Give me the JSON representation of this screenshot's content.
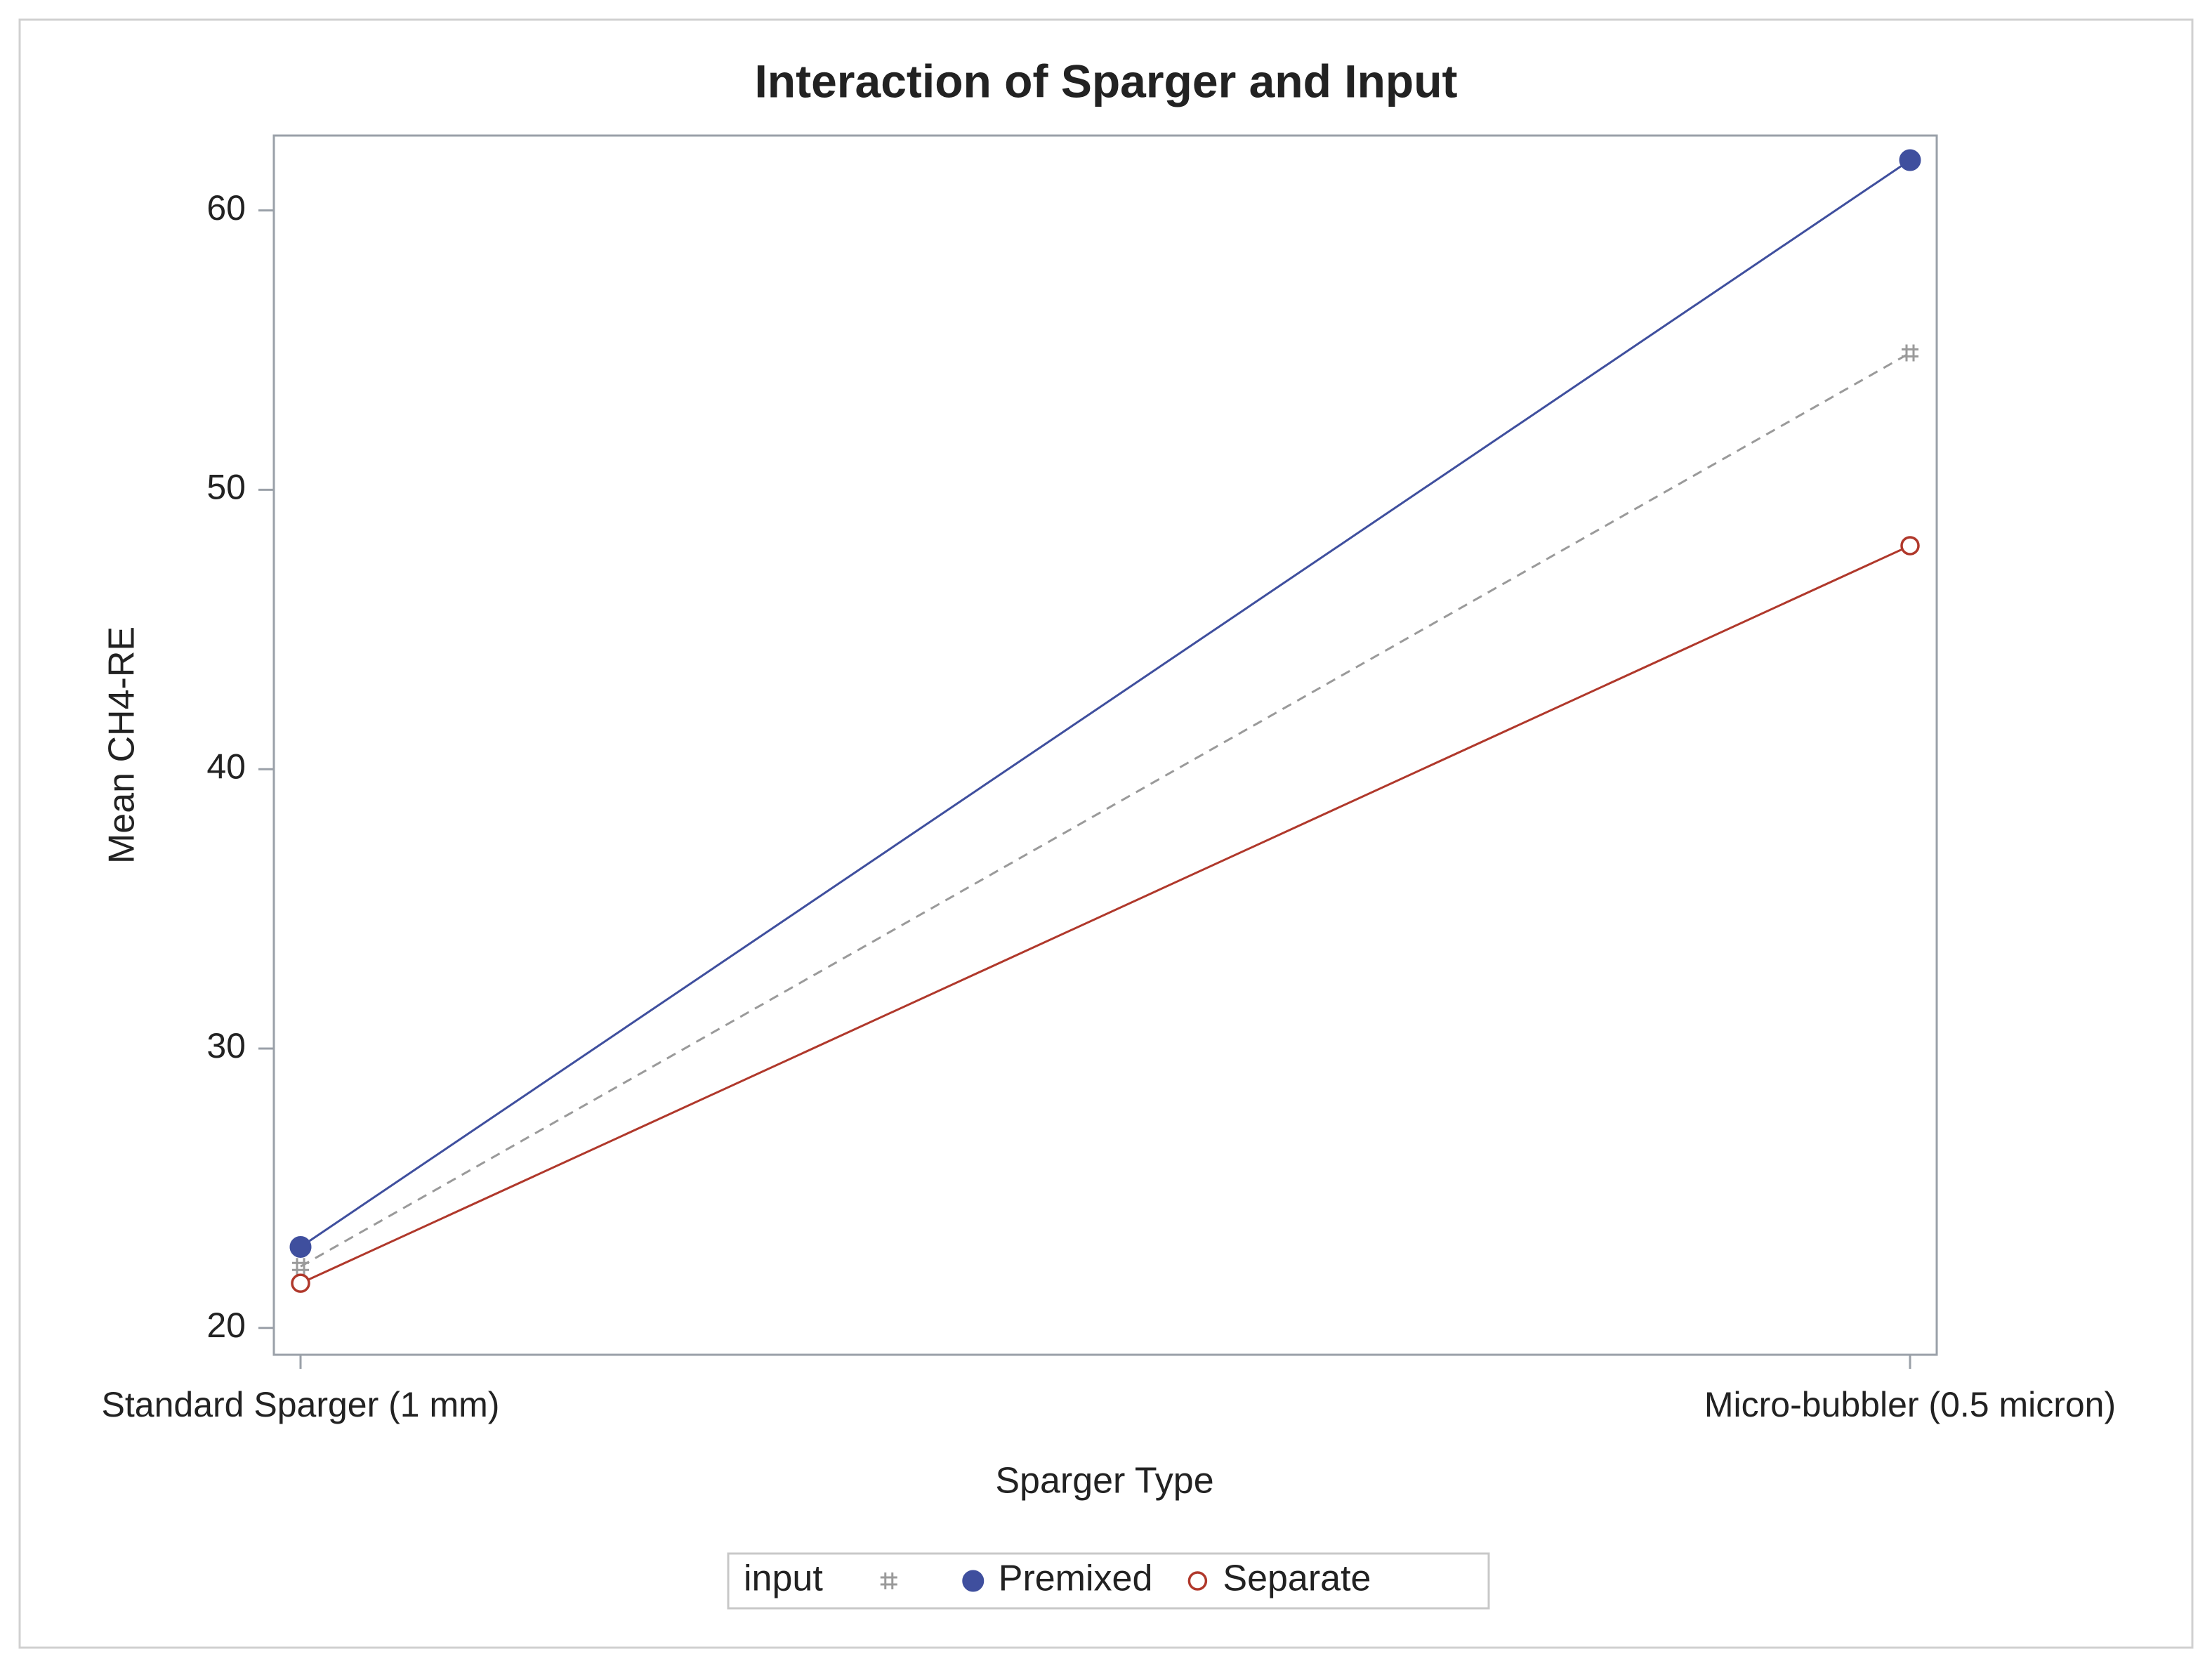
{
  "chart_data": {
    "type": "line",
    "title": "Interaction of Sparger and Input",
    "x_label": "Sparger Type",
    "y_label": "Mean CH4-RE",
    "categories": [
      "Standard Sparger (1 mm)",
      "Micro-bubbler (0.5 micron)"
    ],
    "legend_title": "input",
    "series": [
      {
        "color": "#9a9a9a",
        "marker": "star",
        "dashed": true,
        "values": [
          22.2,
          54.9
        ]
      },
      {
        "name": "Premixed",
        "color": "#3f4f9e",
        "marker": "filled-circle",
        "dashed": false,
        "values": [
          22.9,
          61.8
        ]
      },
      {
        "name": "Separate",
        "color": "#b0382b",
        "marker": "open-circle",
        "dashed": false,
        "values": [
          21.6,
          48.0
        ]
      }
    ],
    "ylim": [
      19.04,
      62.68
    ],
    "yticks": [
      20,
      30,
      40,
      50,
      60
    ]
  }
}
